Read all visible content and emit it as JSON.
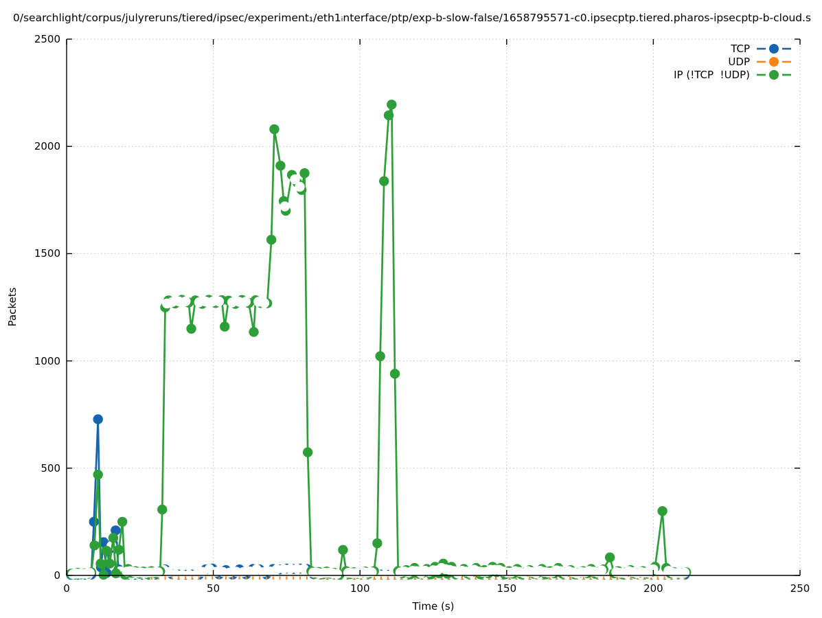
{
  "title": "0/searchlight/corpus/julyreruns/tiered/ipsec/experiment₁/eth1ᵢnterface/ptp/exp-b-slow-false/1658795571-c0.ipsecptp.tiered.pharos-ipsecptp-b-cloud.s",
  "colors": {
    "tcp": "#1565b0",
    "udp": "#fa8418",
    "ip": "#2e9e38",
    "grid": "#bdbdbd",
    "axis": "#000000"
  },
  "chart_data": {
    "type": "line",
    "title": "0/searchlight/corpus/julyreruns/tiered/ipsec/experiment₁/eth1ᵢnterface/ptp/exp-b-slow-false/1658795571-c0.ipsecptp.tiered.pharos-ipsecptp-b-cloud.s",
    "xlabel": "Time (s)",
    "ylabel": "Packets",
    "xlim": [
      0,
      250
    ],
    "ylim": [
      0,
      2500
    ],
    "xticks": [
      0,
      50,
      100,
      150,
      200,
      250
    ],
    "yticks": [
      0,
      500,
      1000,
      1500,
      2000,
      2500
    ],
    "grid": "dotted",
    "legend_position": "top-right-inside",
    "series": [
      {
        "name": "TCP",
        "color": "#1565b0",
        "marker": "circle",
        "points": [
          [
            1.5,
            3
          ],
          [
            3.8,
            3
          ],
          [
            6.1,
            3
          ],
          [
            8.4,
            4
          ],
          [
            9.3,
            250
          ],
          [
            10.7,
            728
          ],
          [
            11.7,
            38
          ],
          [
            12.6,
            155
          ],
          [
            13.6,
            12
          ],
          [
            14.7,
            124
          ],
          [
            15.8,
            150
          ],
          [
            16.7,
            210
          ],
          [
            17.7,
            28
          ],
          [
            18.7,
            12
          ],
          [
            19.8,
            6
          ],
          [
            21,
            4
          ],
          [
            23.3,
            3
          ],
          [
            25.6,
            3
          ],
          [
            27.9,
            3
          ],
          [
            30.2,
            4
          ],
          [
            32.5,
            22
          ],
          [
            33.6,
            28
          ],
          [
            35.9,
            6
          ],
          [
            38.2,
            4
          ],
          [
            40.5,
            3
          ],
          [
            42.8,
            4
          ],
          [
            45.1,
            3
          ],
          [
            47.4,
            28
          ],
          [
            49.7,
            32
          ],
          [
            52,
            5
          ],
          [
            54.3,
            25
          ],
          [
            56.6,
            4
          ],
          [
            58.9,
            28
          ],
          [
            61.2,
            5
          ],
          [
            63.5,
            30
          ],
          [
            65.8,
            28
          ],
          [
            68.1,
            5
          ],
          [
            70.4,
            30
          ],
          [
            72.7,
            28
          ],
          [
            75,
            32
          ],
          [
            77.3,
            30
          ],
          [
            79.6,
            32
          ],
          [
            81.9,
            30
          ],
          [
            84.2,
            6
          ],
          [
            86.5,
            4
          ],
          [
            88.8,
            3
          ],
          [
            91.1,
            4
          ],
          [
            93.4,
            3
          ],
          [
            95.7,
            4
          ],
          [
            98,
            3
          ],
          [
            100.3,
            3
          ],
          [
            102.6,
            4
          ],
          [
            104.9,
            3
          ],
          [
            107.2,
            4
          ],
          [
            109.5,
            3
          ],
          [
            111.8,
            4
          ],
          [
            114.1,
            3
          ],
          [
            116.4,
            3
          ],
          [
            118.7,
            4
          ],
          [
            121,
            3
          ],
          [
            123.3,
            3
          ],
          [
            125.6,
            4
          ],
          [
            127.9,
            3
          ],
          [
            130.2,
            3
          ],
          [
            132.5,
            4
          ],
          [
            134.8,
            3
          ],
          [
            137.1,
            3
          ],
          [
            139.4,
            4
          ],
          [
            141.7,
            3
          ],
          [
            144,
            3
          ],
          [
            146.3,
            4
          ],
          [
            148.6,
            3
          ],
          [
            150.9,
            3
          ],
          [
            153.2,
            4
          ],
          [
            155.5,
            3
          ],
          [
            157.8,
            3
          ],
          [
            160.1,
            4
          ],
          [
            162.4,
            3
          ],
          [
            164.7,
            3
          ],
          [
            167,
            4
          ],
          [
            169.3,
            3
          ],
          [
            171.6,
            3
          ],
          [
            173.9,
            4
          ],
          [
            176.2,
            3
          ],
          [
            178.5,
            3
          ],
          [
            180.8,
            4
          ],
          [
            183.1,
            3
          ],
          [
            185.4,
            3
          ],
          [
            187.7,
            4
          ],
          [
            190,
            3
          ],
          [
            192.3,
            3
          ],
          [
            194.6,
            4
          ],
          [
            196.9,
            3
          ],
          [
            199.2,
            3
          ],
          [
            201.5,
            4
          ],
          [
            203.8,
            3
          ],
          [
            206.1,
            3
          ],
          [
            208.4,
            4
          ],
          [
            210.7,
            3
          ]
        ]
      },
      {
        "name": "UDP",
        "color": "#fa8418",
        "marker": "circle",
        "points_uniform": {
          "t_start": 29,
          "t_end": 211.5,
          "interval": 2.3,
          "value": 0
        }
      },
      {
        "name": "IP (!TCP  !UDP)",
        "color": "#2e9e38",
        "marker": "circle",
        "points": [
          [
            1.5,
            8
          ],
          [
            2.7,
            4
          ],
          [
            3.8,
            12
          ],
          [
            5,
            5
          ],
          [
            6.1,
            10
          ],
          [
            7.3,
            8
          ],
          [
            8.4,
            15
          ],
          [
            9.5,
            140
          ],
          [
            10.7,
            470
          ],
          [
            11.6,
            55
          ],
          [
            12.6,
            3
          ],
          [
            13.6,
            115
          ],
          [
            14.7,
            55
          ],
          [
            15.9,
            175
          ],
          [
            16.8,
            10
          ],
          [
            17.8,
            120
          ],
          [
            19,
            250
          ],
          [
            19.9,
            3
          ],
          [
            21,
            30
          ],
          [
            22.2,
            12
          ],
          [
            23.5,
            20
          ],
          [
            24.9,
            8
          ],
          [
            26.2,
            18
          ],
          [
            27.6,
            6
          ],
          [
            28.9,
            20
          ],
          [
            30.3,
            10
          ],
          [
            31.9,
            19
          ],
          [
            32.6,
            307
          ],
          [
            33.6,
            1250
          ],
          [
            34.7,
            1282
          ],
          [
            37,
            1268
          ],
          [
            39.3,
            1285
          ],
          [
            41.6,
            1272
          ],
          [
            42.5,
            1150
          ],
          [
            43.9,
            1282
          ],
          [
            46.2,
            1266
          ],
          [
            48.5,
            1285
          ],
          [
            50.8,
            1270
          ],
          [
            52.9,
            1283
          ],
          [
            53.9,
            1160
          ],
          [
            55.2,
            1281
          ],
          [
            57.5,
            1266
          ],
          [
            59.8,
            1284
          ],
          [
            62.1,
            1270
          ],
          [
            63.8,
            1135
          ],
          [
            64.4,
            1283
          ],
          [
            66.2,
            1270
          ],
          [
            68.4,
            1269
          ],
          [
            69.8,
            1565
          ],
          [
            70.8,
            2080
          ],
          [
            72.9,
            1910
          ],
          [
            74,
            1745
          ],
          [
            74.7,
            1700
          ],
          [
            76.8,
            1867
          ],
          [
            78.7,
            1830
          ],
          [
            80.1,
            1797
          ],
          [
            81.1,
            1875
          ],
          [
            82.2,
            574
          ],
          [
            83.4,
            20
          ],
          [
            84.7,
            8
          ],
          [
            86,
            16
          ],
          [
            87.3,
            5
          ],
          [
            88.6,
            18
          ],
          [
            89.9,
            8
          ],
          [
            91.2,
            12
          ],
          [
            93,
            3
          ],
          [
            94.2,
            119
          ],
          [
            95.3,
            20
          ],
          [
            96.6,
            6
          ],
          [
            97.9,
            15
          ],
          [
            99.2,
            8
          ],
          [
            100.5,
            12
          ],
          [
            101.8,
            18
          ],
          [
            103.1,
            8
          ],
          [
            104.8,
            20
          ],
          [
            105.9,
            150
          ],
          [
            106.9,
            1022
          ],
          [
            108.2,
            1838
          ],
          [
            109.8,
            2145
          ],
          [
            110.8,
            2195
          ],
          [
            111.9,
            940
          ],
          [
            113,
            20
          ],
          [
            114.4,
            10
          ],
          [
            115.8,
            25
          ],
          [
            117.2,
            5
          ],
          [
            118.6,
            35
          ],
          [
            120,
            8
          ],
          [
            121.4,
            12
          ],
          [
            122.8,
            30
          ],
          [
            124.2,
            5
          ],
          [
            125.6,
            40
          ],
          [
            127,
            10
          ],
          [
            128.4,
            55
          ],
          [
            129.8,
            8
          ],
          [
            131.2,
            40
          ],
          [
            132.6,
            5
          ],
          [
            134,
            12
          ],
          [
            135.4,
            30
          ],
          [
            136.8,
            8
          ],
          [
            138.2,
            15
          ],
          [
            139.6,
            35
          ],
          [
            141,
            5
          ],
          [
            142.4,
            25
          ],
          [
            143.8,
            10
          ],
          [
            145.2,
            40
          ],
          [
            146.6,
            15
          ],
          [
            148,
            35
          ],
          [
            149.4,
            5
          ],
          [
            150.8,
            20
          ],
          [
            152.2,
            8
          ],
          [
            153.6,
            30
          ],
          [
            155,
            5
          ],
          [
            156.4,
            15
          ],
          [
            157.8,
            25
          ],
          [
            159.2,
            8
          ],
          [
            160.6,
            12
          ],
          [
            162,
            30
          ],
          [
            163.4,
            5
          ],
          [
            164.8,
            20
          ],
          [
            166.2,
            10
          ],
          [
            167.6,
            35
          ],
          [
            169,
            8
          ],
          [
            170.4,
            15
          ],
          [
            171.8,
            25
          ],
          [
            173.2,
            5
          ],
          [
            174.6,
            12
          ],
          [
            176,
            20
          ],
          [
            177.4,
            10
          ],
          [
            178.8,
            30
          ],
          [
            180.2,
            8
          ],
          [
            181.6,
            18
          ],
          [
            183,
            28
          ],
          [
            185.2,
            84
          ],
          [
            186.6,
            10
          ],
          [
            188,
            20
          ],
          [
            189.4,
            5
          ],
          [
            190.8,
            15
          ],
          [
            192.2,
            25
          ],
          [
            193.6,
            8
          ],
          [
            195,
            12
          ],
          [
            196.4,
            20
          ],
          [
            197.8,
            8
          ],
          [
            199.2,
            15
          ],
          [
            200.6,
            40
          ],
          [
            203.1,
            300
          ],
          [
            204.4,
            35
          ],
          [
            205.8,
            10
          ],
          [
            207.2,
            15
          ],
          [
            208.6,
            8
          ],
          [
            210,
            12
          ],
          [
            211.2,
            15
          ]
        ]
      }
    ]
  }
}
